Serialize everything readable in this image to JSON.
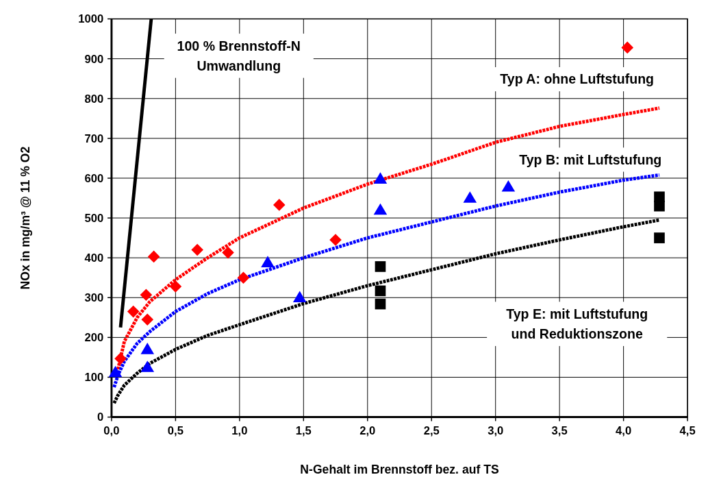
{
  "chart_data": {
    "type": "scatter",
    "xlabel": "N-Gehalt im Brennstoff bez. auf TS",
    "ylabel": "NOx in mg/m³ @ 11 % O2",
    "xlim": [
      0,
      4.5
    ],
    "ylim": [
      0,
      1000
    ],
    "xticks": [
      {
        "value": 0,
        "label": "0,0"
      },
      {
        "value": 0.5,
        "label": "0,5"
      },
      {
        "value": 1,
        "label": "1,0"
      },
      {
        "value": 1.5,
        "label": "1,5"
      },
      {
        "value": 2,
        "label": "2,0"
      },
      {
        "value": 2.5,
        "label": "2,5"
      },
      {
        "value": 3,
        "label": "3,0"
      },
      {
        "value": 3.5,
        "label": "3,5"
      },
      {
        "value": 4,
        "label": "4,0"
      },
      {
        "value": 4.5,
        "label": "4,5"
      }
    ],
    "yticks": [
      0,
      100,
      200,
      300,
      400,
      500,
      600,
      700,
      800,
      900,
      1000
    ],
    "grid": true,
    "series": [
      {
        "type": "line",
        "color": "#000000",
        "line_style": "solid",
        "marker": "none",
        "x": [
          0.07,
          0.31
        ],
        "values": [
          225,
          1000
        ]
      },
      {
        "type": "line",
        "color": "#ff0000",
        "line_style": "dotted",
        "marker": "none",
        "x": [
          0.05,
          0.1,
          0.2,
          0.3,
          0.5,
          0.75,
          1,
          1.5,
          2,
          2.5,
          3,
          3.5,
          4,
          4.28
        ],
        "values": [
          120,
          190,
          250,
          290,
          345,
          400,
          450,
          525,
          585,
          635,
          690,
          730,
          760,
          776
        ]
      },
      {
        "type": "line",
        "color": "#0000ff",
        "line_style": "dotted",
        "marker": "none",
        "x": [
          0.02,
          0.05,
          0.1,
          0.2,
          0.3,
          0.5,
          0.75,
          1,
          1.5,
          2,
          2.5,
          3,
          3.5,
          4,
          4.28
        ],
        "values": [
          75,
          105,
          140,
          185,
          215,
          265,
          310,
          345,
          400,
          450,
          490,
          530,
          565,
          595,
          608
        ]
      },
      {
        "type": "line",
        "color": "#000000",
        "line_style": "dotted",
        "marker": "none",
        "x": [
          0.02,
          0.05,
          0.1,
          0.2,
          0.3,
          0.5,
          0.75,
          1,
          1.5,
          2,
          2.5,
          3,
          3.5,
          4,
          4.28
        ],
        "values": [
          35,
          55,
          80,
          110,
          135,
          170,
          205,
          232,
          285,
          330,
          370,
          410,
          445,
          478,
          495
        ]
      },
      {
        "color": "#ff0000",
        "marker": "diamond",
        "x": [
          0.07,
          0.17,
          0.27,
          0.28,
          0.33,
          0.5,
          0.67,
          0.91,
          1.03,
          1.31,
          1.75,
          4.03
        ],
        "values": [
          147,
          265,
          307,
          245,
          403,
          328,
          420,
          413,
          350,
          533,
          445,
          928
        ]
      },
      {
        "color": "#0000ff",
        "marker": "triangle",
        "x": [
          0.03,
          0.28,
          0.28,
          1.22,
          1.47,
          2.1,
          2.1,
          2.8,
          3.1
        ],
        "values": [
          112,
          170,
          125,
          388,
          300,
          598,
          520,
          550,
          578
        ]
      },
      {
        "color": "#000000",
        "marker": "square",
        "x": [
          2.1,
          2.1,
          2.1,
          4.28,
          4.28,
          4.28
        ],
        "values": [
          378,
          317,
          284,
          553,
          530,
          450
        ]
      }
    ],
    "annotations": [
      "100 % Brennstoff-N\nUmwandlung",
      "Typ A: ohne Luftstufung",
      "Typ B: mit Luftstufung",
      "Typ E: mit Luftstufung\nund Reduktionszone"
    ]
  }
}
